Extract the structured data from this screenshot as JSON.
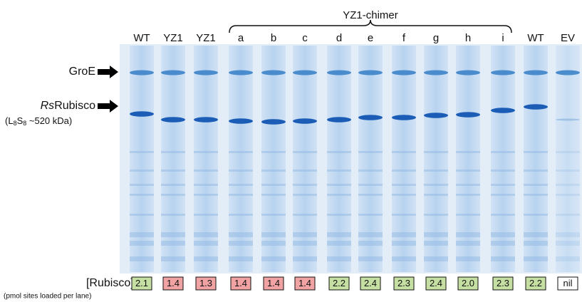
{
  "header": {
    "group_label": "YZ1-chimer"
  },
  "markers": {
    "groe": "GroE",
    "rubisco_prefix": "Rs",
    "rubisco_name": "Rubisco",
    "size_note": [
      "(L",
      "8",
      "S",
      "8",
      " ~520 kDa)"
    ]
  },
  "quantification": {
    "label": "[Rubisco]-",
    "unit_note": "(pmol sites loaded per lane)"
  },
  "lanes": [
    {
      "label": "WT",
      "rubisco": "2.1",
      "color": "#c6dfa3"
    },
    {
      "label": "YZ1",
      "rubisco": "1.4",
      "color": "#f1a3a3"
    },
    {
      "label": "YZ1",
      "rubisco": "1.3",
      "color": "#f1a3a3"
    },
    {
      "label": "a",
      "rubisco": "1.4",
      "color": "#f1a3a3"
    },
    {
      "label": "b",
      "rubisco": "1.4",
      "color": "#f1a3a3"
    },
    {
      "label": "c",
      "rubisco": "1.4",
      "color": "#f1a3a3"
    },
    {
      "label": "d",
      "rubisco": "2.2",
      "color": "#c6dfa3"
    },
    {
      "label": "e",
      "rubisco": "2.4",
      "color": "#c6dfa3"
    },
    {
      "label": "f",
      "rubisco": "2.3",
      "color": "#c6dfa3"
    },
    {
      "label": "g",
      "rubisco": "2.4",
      "color": "#c6dfa3"
    },
    {
      "label": "h",
      "rubisco": "2.0",
      "color": "#c6dfa3"
    },
    {
      "label": "i",
      "rubisco": "2.3",
      "color": "#c6dfa3"
    },
    {
      "label": "WT",
      "rubisco": "2.2",
      "color": "#c6dfa3"
    },
    {
      "label": "EV",
      "rubisco": "nil",
      "color": "#ffffff"
    }
  ]
}
